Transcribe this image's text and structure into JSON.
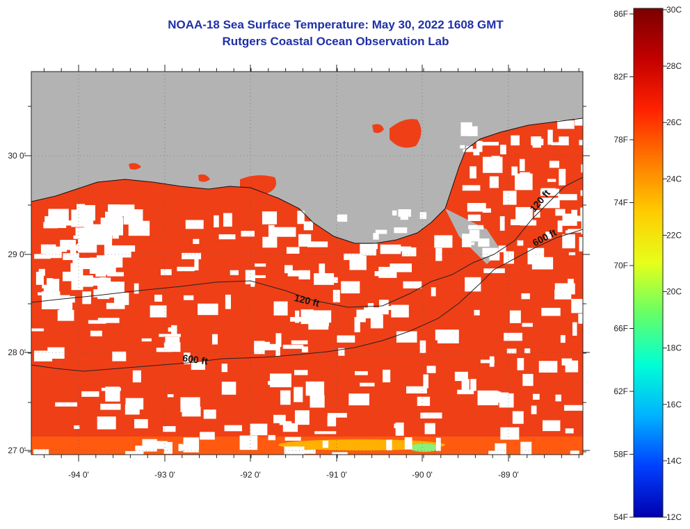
{
  "title": {
    "line1": "NOAA-18 Sea Surface Temperature:  May 30, 2022 1608 GMT",
    "line2": "Rutgers Coastal Ocean Observation Lab"
  },
  "map": {
    "lon_labels": [
      "-94 0'",
      "-93 0'",
      "-92 0'",
      "-91 0'",
      "-90 0'",
      "-89 0'"
    ],
    "lat_labels": [
      "30 0'",
      "29 0'",
      "28 0'",
      "27 0'"
    ],
    "contour_labels": [
      "120 ft",
      "600 ft",
      "120 ft",
      "600 ft"
    ],
    "colors": {
      "land": "#b3b3b3",
      "ocean": "#ef3f17",
      "cloud": "#ffffff",
      "contour": "#222222"
    }
  },
  "colorbar": {
    "fahrenheit_labels": [
      "86F",
      "82F",
      "78F",
      "74F",
      "70F",
      "66F",
      "62F",
      "58F",
      "54F"
    ],
    "celsius_labels": [
      "30C",
      "28C",
      "26C",
      "24C",
      "22C",
      "20C",
      "18C",
      "16C",
      "14C",
      "12C"
    ],
    "gradient": [
      "#7a0000",
      "#c40000",
      "#ff2200",
      "#ff7a00",
      "#ffcc00",
      "#e6ff1a",
      "#66ff66",
      "#00ffd5",
      "#00b3ff",
      "#0040ff",
      "#0000b0"
    ]
  }
}
